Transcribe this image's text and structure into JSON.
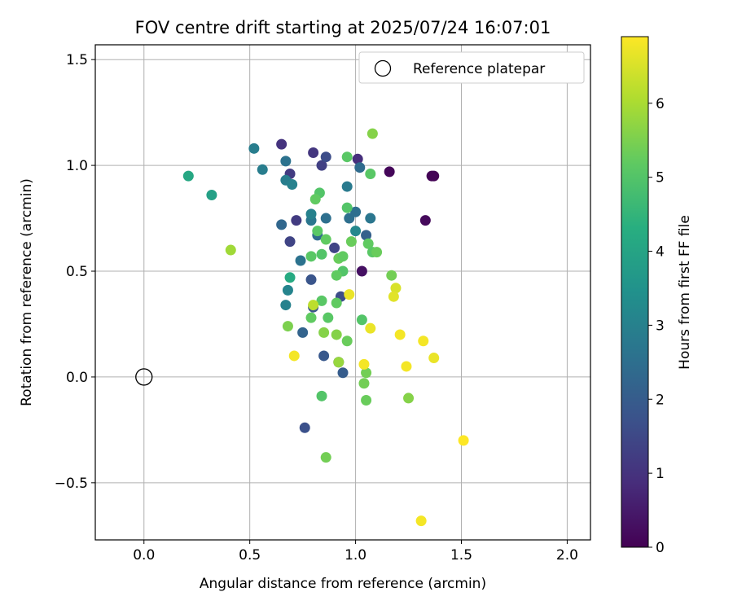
{
  "chart_data": {
    "type": "scatter",
    "title": "FOV centre drift starting at 2025/07/24 16:07:01",
    "xlabel": "Angular distance from reference (arcmin)",
    "ylabel": "Rotation from reference (arcmin)",
    "xlim": [
      -0.23,
      2.11
    ],
    "ylim": [
      -0.77,
      1.57
    ],
    "xticks": [
      0.0,
      0.5,
      1.0,
      1.5,
      2.0
    ],
    "xtick_labels": [
      "0.0",
      "0.5",
      "1.0",
      "1.5",
      "2.0"
    ],
    "yticks": [
      -0.5,
      0.0,
      0.5,
      1.0,
      1.5
    ],
    "ytick_labels": [
      "−0.5",
      "0.0",
      "0.5",
      "1.0",
      "1.5"
    ],
    "grid": true,
    "legend": {
      "position": "top-right",
      "entries": [
        "Reference platepar"
      ]
    },
    "reference_point": {
      "x": 0.0,
      "y": 0.0
    },
    "colorbar": {
      "label": "Hours from first FF file",
      "range": [
        0,
        6.9
      ],
      "ticks": [
        0,
        1,
        2,
        3,
        4,
        5,
        6
      ],
      "tick_labels": [
        "0",
        "1",
        "2",
        "3",
        "4",
        "5",
        "6"
      ],
      "colormap": "viridis"
    },
    "points": [
      {
        "x": 1.37,
        "y": 0.95,
        "h": 0.0
      },
      {
        "x": 1.36,
        "y": 0.95,
        "h": 0.05
      },
      {
        "x": 1.16,
        "y": 0.97,
        "h": 0.1
      },
      {
        "x": 1.33,
        "y": 0.74,
        "h": 0.15
      },
      {
        "x": 1.03,
        "y": 0.5,
        "h": 0.3
      },
      {
        "x": 1.01,
        "y": 1.03,
        "h": 0.9
      },
      {
        "x": 0.65,
        "y": 1.1,
        "h": 1.0
      },
      {
        "x": 0.8,
        "y": 1.06,
        "h": 1.1
      },
      {
        "x": 0.69,
        "y": 0.96,
        "h": 1.2
      },
      {
        "x": 0.72,
        "y": 0.74,
        "h": 1.2
      },
      {
        "x": 0.84,
        "y": 1.0,
        "h": 1.3
      },
      {
        "x": 0.69,
        "y": 0.64,
        "h": 1.4
      },
      {
        "x": 0.9,
        "y": 0.61,
        "h": 1.4
      },
      {
        "x": 0.86,
        "y": 1.04,
        "h": 1.6
      },
      {
        "x": 0.93,
        "y": 0.38,
        "h": 1.6
      },
      {
        "x": 0.92,
        "y": 0.07,
        "h": 1.6
      },
      {
        "x": 0.76,
        "y": -0.24,
        "h": 1.7
      },
      {
        "x": 0.79,
        "y": 0.46,
        "h": 1.8
      },
      {
        "x": 0.8,
        "y": 0.33,
        "h": 1.8
      },
      {
        "x": 0.85,
        "y": 0.1,
        "h": 1.9
      },
      {
        "x": 0.94,
        "y": 0.02,
        "h": 2.0
      },
      {
        "x": 1.05,
        "y": 0.67,
        "h": 2.1
      },
      {
        "x": 0.75,
        "y": 0.21,
        "h": 2.2
      },
      {
        "x": 0.65,
        "y": 0.72,
        "h": 2.3
      },
      {
        "x": 1.02,
        "y": 0.99,
        "h": 2.4
      },
      {
        "x": 0.82,
        "y": 0.67,
        "h": 2.4
      },
      {
        "x": 0.86,
        "y": 0.75,
        "h": 2.5
      },
      {
        "x": 0.97,
        "y": 0.75,
        "h": 2.5
      },
      {
        "x": 1.0,
        "y": 0.78,
        "h": 2.5
      },
      {
        "x": 0.74,
        "y": 0.55,
        "h": 2.6
      },
      {
        "x": 0.67,
        "y": 1.02,
        "h": 2.6
      },
      {
        "x": 1.07,
        "y": 0.75,
        "h": 2.7
      },
      {
        "x": 0.79,
        "y": 0.74,
        "h": 2.7
      },
      {
        "x": 0.96,
        "y": 0.9,
        "h": 2.8
      },
      {
        "x": 0.52,
        "y": 1.08,
        "h": 2.9
      },
      {
        "x": 0.56,
        "y": 0.98,
        "h": 2.9
      },
      {
        "x": 0.67,
        "y": 0.93,
        "h": 2.9
      },
      {
        "x": 0.7,
        "y": 0.91,
        "h": 3.0
      },
      {
        "x": 0.67,
        "y": 0.34,
        "h": 3.0
      },
      {
        "x": 0.68,
        "y": 0.41,
        "h": 3.1
      },
      {
        "x": 0.79,
        "y": 0.77,
        "h": 3.0
      },
      {
        "x": 1.0,
        "y": 0.69,
        "h": 3.2
      },
      {
        "x": 0.32,
        "y": 0.86,
        "h": 3.9
      },
      {
        "x": 0.21,
        "y": 0.95,
        "h": 4.1
      },
      {
        "x": 0.69,
        "y": 0.47,
        "h": 4.2
      },
      {
        "x": 0.96,
        "y": 1.04,
        "h": 5.1
      },
      {
        "x": 1.07,
        "y": 0.96,
        "h": 5.1
      },
      {
        "x": 0.83,
        "y": 0.87,
        "h": 5.0
      },
      {
        "x": 0.81,
        "y": 0.84,
        "h": 5.2
      },
      {
        "x": 0.96,
        "y": 0.8,
        "h": 5.0
      },
      {
        "x": 0.82,
        "y": 0.69,
        "h": 5.1
      },
      {
        "x": 0.86,
        "y": 0.65,
        "h": 5.2
      },
      {
        "x": 0.98,
        "y": 0.64,
        "h": 5.3
      },
      {
        "x": 1.06,
        "y": 0.63,
        "h": 5.2
      },
      {
        "x": 1.08,
        "y": 0.59,
        "h": 5.1
      },
      {
        "x": 1.1,
        "y": 0.59,
        "h": 5.3
      },
      {
        "x": 0.84,
        "y": 0.58,
        "h": 5.0
      },
      {
        "x": 0.79,
        "y": 0.57,
        "h": 5.1
      },
      {
        "x": 0.92,
        "y": 0.56,
        "h": 5.3
      },
      {
        "x": 0.94,
        "y": 0.57,
        "h": 5.2
      },
      {
        "x": 0.94,
        "y": 0.5,
        "h": 5.0
      },
      {
        "x": 0.91,
        "y": 0.48,
        "h": 5.2
      },
      {
        "x": 1.17,
        "y": 0.48,
        "h": 5.4
      },
      {
        "x": 0.84,
        "y": 0.36,
        "h": 5.1
      },
      {
        "x": 0.91,
        "y": 0.35,
        "h": 5.2
      },
      {
        "x": 0.79,
        "y": 0.28,
        "h": 5.2
      },
      {
        "x": 0.87,
        "y": 0.28,
        "h": 5.1
      },
      {
        "x": 1.03,
        "y": 0.27,
        "h": 5.0
      },
      {
        "x": 0.68,
        "y": 0.24,
        "h": 5.5
      },
      {
        "x": 0.85,
        "y": 0.21,
        "h": 5.6
      },
      {
        "x": 0.91,
        "y": 0.2,
        "h": 5.6
      },
      {
        "x": 0.96,
        "y": 0.17,
        "h": 5.3
      },
      {
        "x": 1.05,
        "y": 0.02,
        "h": 5.4
      },
      {
        "x": 0.92,
        "y": 0.07,
        "h": 5.8
      },
      {
        "x": 1.04,
        "y": -0.03,
        "h": 5.4
      },
      {
        "x": 1.05,
        "y": -0.11,
        "h": 5.3
      },
      {
        "x": 0.84,
        "y": -0.09,
        "h": 5.0
      },
      {
        "x": 1.25,
        "y": -0.1,
        "h": 5.6
      },
      {
        "x": 0.86,
        "y": -0.38,
        "h": 5.4
      },
      {
        "x": 0.41,
        "y": 0.6,
        "h": 5.9
      },
      {
        "x": 1.08,
        "y": 1.15,
        "h": 5.6
      },
      {
        "x": 0.8,
        "y": 0.34,
        "h": 6.2
      },
      {
        "x": 1.19,
        "y": 0.42,
        "h": 6.5
      },
      {
        "x": 1.18,
        "y": 0.38,
        "h": 6.6
      },
      {
        "x": 0.97,
        "y": 0.39,
        "h": 6.7
      },
      {
        "x": 1.07,
        "y": 0.23,
        "h": 6.7
      },
      {
        "x": 1.21,
        "y": 0.2,
        "h": 6.8
      },
      {
        "x": 1.32,
        "y": 0.17,
        "h": 6.8
      },
      {
        "x": 0.71,
        "y": 0.1,
        "h": 6.8
      },
      {
        "x": 1.37,
        "y": 0.09,
        "h": 6.7
      },
      {
        "x": 1.04,
        "y": 0.06,
        "h": 6.8
      },
      {
        "x": 1.24,
        "y": 0.05,
        "h": 6.8
      },
      {
        "x": 1.51,
        "y": -0.3,
        "h": 6.9
      },
      {
        "x": 1.31,
        "y": -0.68,
        "h": 6.8
      }
    ]
  }
}
